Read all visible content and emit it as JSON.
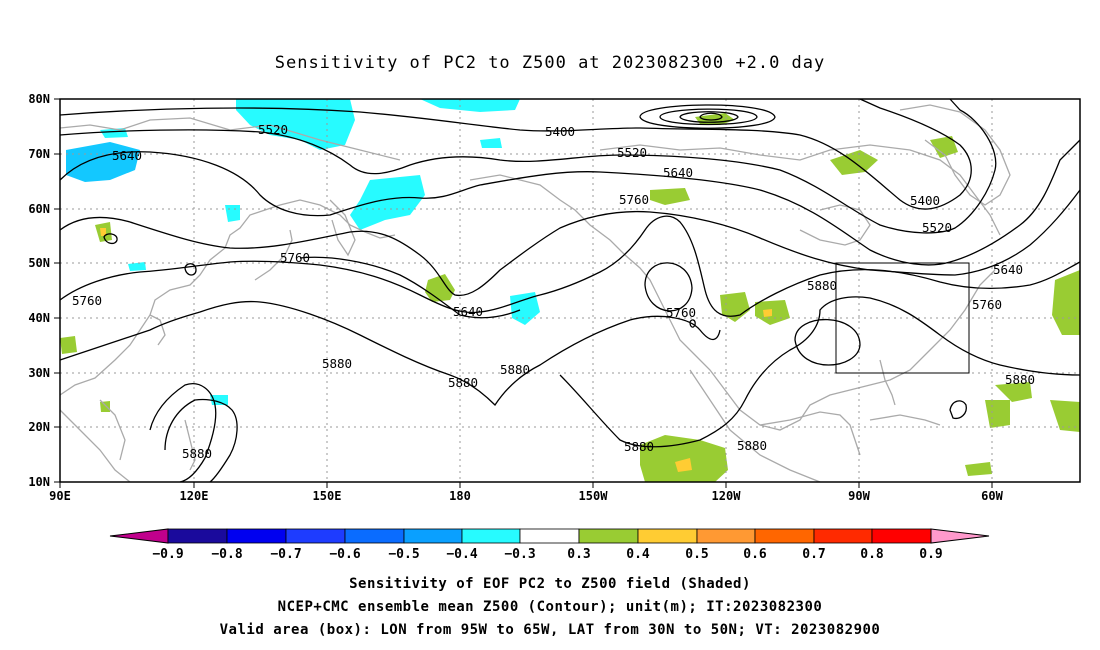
{
  "title": "Sensitivity of PC2 to Z500 at 2023082300 +2.0 day",
  "lat_labels": [
    "80N",
    "70N",
    "60N",
    "50N",
    "40N",
    "30N",
    "20N",
    "10N"
  ],
  "lon_labels": [
    "90E",
    "120E",
    "150E",
    "180",
    "150W",
    "120W",
    "90W",
    "60W"
  ],
  "contour_labels": {
    "c5520a": "5520",
    "c5640a": "5640",
    "c5400": "5400",
    "c5520b": "5520",
    "c5640b": "5640",
    "c5760a": "5760",
    "c5400b": "5400",
    "c5520c": "5520",
    "c5640c": "5640",
    "c5760b": "5760",
    "c5760c": "5760",
    "c5640d": "5640",
    "c5760d": "5760",
    "c5880a": "5880",
    "c5880b": "5880",
    "c5880c": "5880",
    "c5880d": "5880",
    "c5880e": "5880",
    "c5880f": "5880",
    "c5760e": "5760",
    "c5880g": "5880"
  },
  "colorbar": {
    "labels": [
      "−0.9",
      "−0.8",
      "−0.7",
      "−0.6",
      "−0.5",
      "−0.4",
      "−0.3",
      "0.3",
      "0.4",
      "0.5",
      "0.6",
      "0.7",
      "0.8",
      "0.9"
    ],
    "colors": [
      "#1a0a9c",
      "#0000f0",
      "#1e3cff",
      "#0a6cff",
      "#0aa0ff",
      "#13c8ff",
      "#27fbff",
      "#ffffff",
      "#99cc33",
      "#ffcc33",
      "#ff9933",
      "#ff6600",
      "#ff2a00",
      "#ff0000"
    ],
    "low_end_color": "#c0008c",
    "high_end_color": "#ff99cc"
  },
  "footer": {
    "line1": "Sensitivity of EOF PC2 to Z500 field (Shaded)",
    "line2": "NCEP+CMC ensemble mean Z500 (Contour); unit(m); IT:2023082300",
    "line3": "Valid area (box): LON from 95W to 65W, LAT from 30N to 50N; VT: 2023082900"
  },
  "colors": {
    "negative_shade": "#27fbff",
    "negative_shade_strong": "#13c8ff",
    "positive_shade": "#99cc33",
    "positive_shade_strong": "#ffcc33",
    "coastline": "#aaaaaa",
    "grid": "#9a9a9a"
  }
}
